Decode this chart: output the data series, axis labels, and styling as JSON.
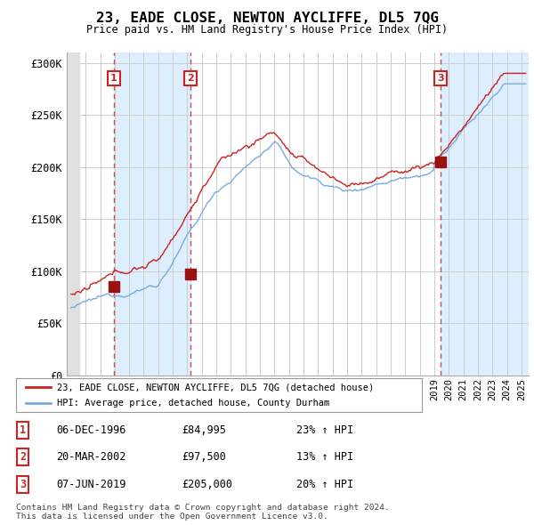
{
  "title": "23, EADE CLOSE, NEWTON AYCLIFFE, DL5 7QG",
  "subtitle": "Price paid vs. HM Land Registry's House Price Index (HPI)",
  "ylabel_ticks": [
    "£0",
    "£50K",
    "£100K",
    "£150K",
    "£200K",
    "£250K",
    "£300K"
  ],
  "ytick_values": [
    0,
    50000,
    100000,
    150000,
    200000,
    250000,
    300000
  ],
  "ylim": [
    0,
    310000
  ],
  "xlim_start": 1993.7,
  "xlim_end": 2025.5,
  "sale_dates": [
    1996.92,
    2002.22,
    2019.44
  ],
  "sale_prices": [
    84995,
    97500,
    205000
  ],
  "sale_labels": [
    "1",
    "2",
    "3"
  ],
  "hpi_color": "#7aabe0",
  "price_color": "#cc2222",
  "sale_dot_color": "#991111",
  "shade_color": "#ddeeff",
  "hatch_region_end": 1994.6,
  "legend_line1": "23, EADE CLOSE, NEWTON AYCLIFFE, DL5 7QG (detached house)",
  "legend_line2": "HPI: Average price, detached house, County Durham",
  "table_rows": [
    [
      "1",
      "06-DEC-1996",
      "£84,995",
      "23% ↑ HPI"
    ],
    [
      "2",
      "20-MAR-2002",
      "£97,500",
      "13% ↑ HPI"
    ],
    [
      "3",
      "07-JUN-2019",
      "£205,000",
      "20% ↑ HPI"
    ]
  ],
  "footer": "Contains HM Land Registry data © Crown copyright and database right 2024.\nThis data is licensed under the Open Government Licence v3.0.",
  "background_color": "#ffffff",
  "grid_color": "#cccccc"
}
